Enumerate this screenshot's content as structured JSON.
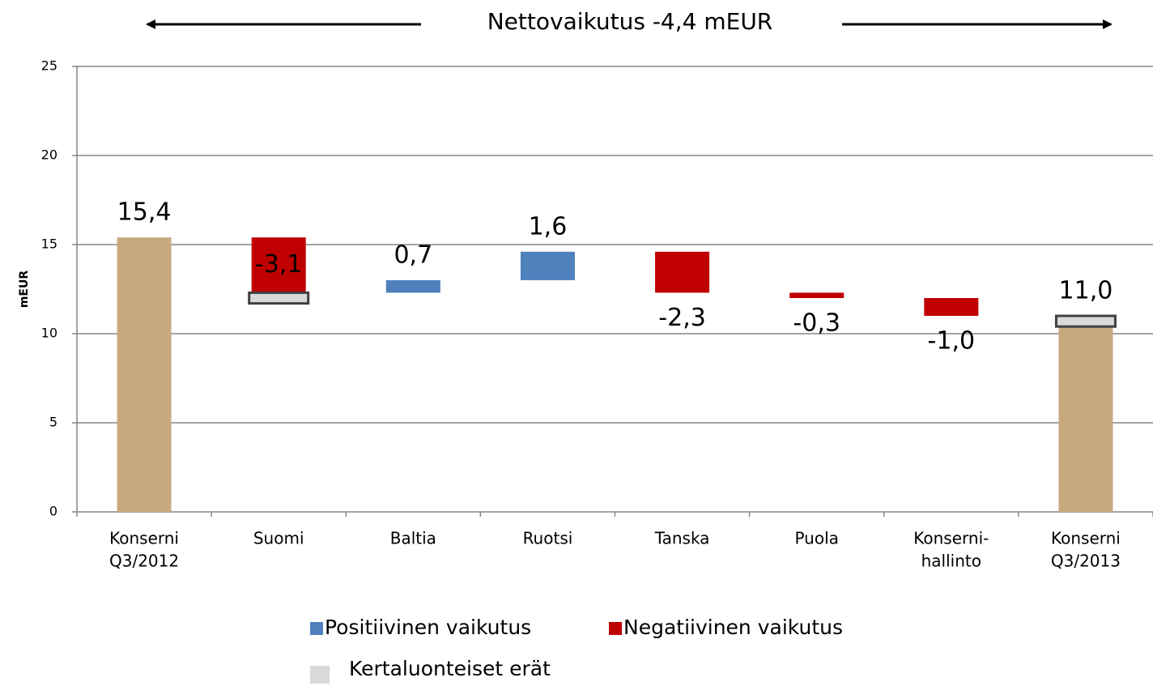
{
  "chart_data": {
    "type": "waterfall",
    "title": "Nettovaikutus -4,4 mEUR",
    "ylabel": "mEUR",
    "categories": [
      [
        "Konserni",
        "Q3/2012"
      ],
      [
        "Suomi"
      ],
      [
        "Baltia"
      ],
      [
        "Ruotsi"
      ],
      [
        "Tanska"
      ],
      [
        "Puola"
      ],
      [
        "Konserni-",
        "hallinto"
      ],
      [
        "Konserni",
        "Q3/2013"
      ]
    ],
    "values": [
      15.4,
      -3.1,
      0.7,
      1.6,
      -2.3,
      -0.3,
      -1.0,
      11.0
    ],
    "value_labels": [
      "15,4",
      "-3,1",
      "0,7",
      "1,6",
      "-2,3",
      "-0,3",
      "-1,0",
      "11,0"
    ],
    "total_color": "#c8a97e",
    "series": [
      {
        "name": "Positiivinen vaikutus",
        "color": "#4f81bd"
      },
      {
        "name": "Negatiivinen vaikutus",
        "color": "#c00000"
      },
      {
        "name": "Kertaluonteiset erät",
        "color": "#d9d9d9",
        "values": [
          null,
          0.6,
          null,
          null,
          null,
          null,
          null,
          0.6
        ]
      }
    ],
    "ylim": [
      0,
      25
    ],
    "yticks": [
      0,
      5,
      10,
      15,
      20,
      25
    ],
    "grid": true
  }
}
